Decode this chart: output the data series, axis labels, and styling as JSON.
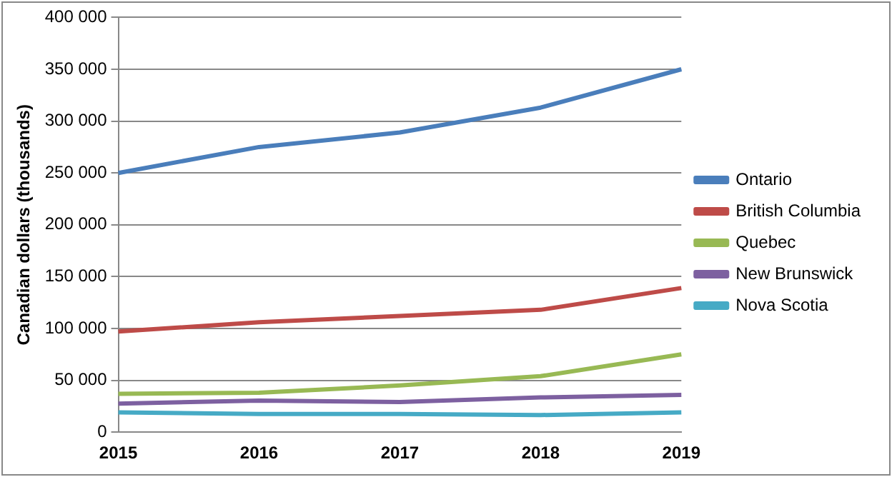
{
  "chart_data": {
    "type": "line",
    "ylabel": "Canadian dollars (thousands)",
    "categories": [
      "2015",
      "2016",
      "2017",
      "2018",
      "2019"
    ],
    "series": [
      {
        "name": "Ontario",
        "color": "#4a7ebb",
        "values": [
          250000,
          275000,
          289000,
          313000,
          350000
        ]
      },
      {
        "name": "British Columbia",
        "color": "#be4b48",
        "values": [
          97000,
          106000,
          112000,
          118000,
          139000
        ]
      },
      {
        "name": "Quebec",
        "color": "#98b954",
        "values": [
          37000,
          38000,
          45000,
          54000,
          75000
        ]
      },
      {
        "name": "New Brunswick",
        "color": "#7d60a0",
        "values": [
          27500,
          30500,
          29000,
          33500,
          36000
        ]
      },
      {
        "name": "Nova Scotia",
        "color": "#46aac5",
        "values": [
          19000,
          17500,
          17500,
          16500,
          19000
        ]
      }
    ],
    "ylim": [
      0,
      400000
    ],
    "yticks": [
      0,
      {
        "value": 50000,
        "label": "50 000"
      },
      {
        "value": 100000,
        "label": "100 000"
      },
      {
        "value": 150000,
        "label": "150 000"
      },
      {
        "value": 200000,
        "label": "200 000"
      },
      {
        "value": 250000,
        "label": "250 000"
      },
      {
        "value": 300000,
        "label": "300 000"
      },
      {
        "value": 350000,
        "label": "350 000"
      },
      {
        "value": 400000,
        "label": "400 000"
      }
    ],
    "grid": "y",
    "legend": "right",
    "marker": "none",
    "line_style": "solid"
  }
}
